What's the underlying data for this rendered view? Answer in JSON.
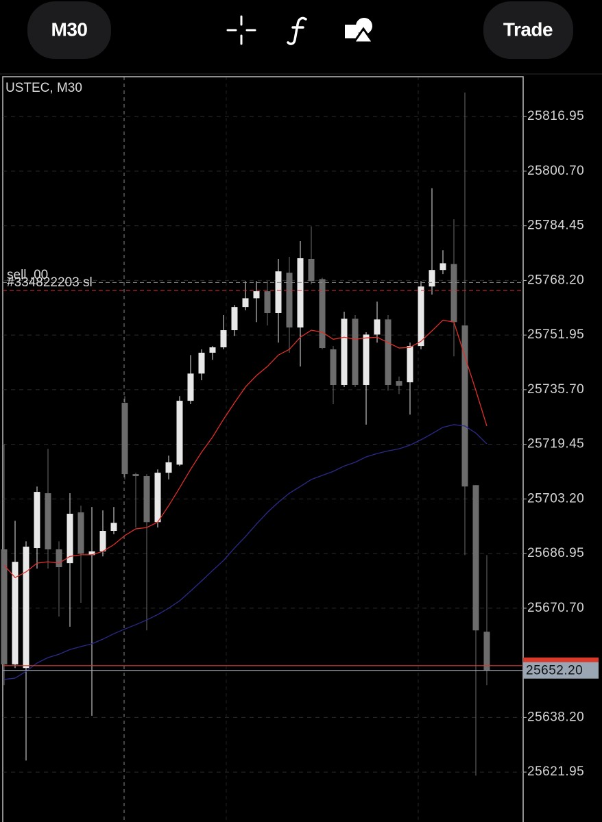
{
  "toolbar": {
    "timeframe": "M30",
    "trade": "Trade"
  },
  "chart_data": {
    "type": "candlestick",
    "title": "USTEC, M30",
    "up_color": "#e8e8e8",
    "down_color": "#6c6c6c",
    "candles": {
      "open": [
        25688.2,
        25654.0,
        25652.9,
        25688.6,
        25704.9,
        25688.2,
        25684.1,
        25699.2,
        25686.5,
        25687.6,
        25693.7,
        25731.8,
        25710.6,
        25710.0,
        25696.3,
        25711.0,
        25713.4,
        25732.4,
        25740.5,
        25746.7,
        25748.3,
        25753.4,
        25760.3,
        25762.9,
        25765.0,
        25758.5,
        25770.5,
        25754.2,
        25774.6,
        25768.6,
        25747.7,
        25737.1,
        25756.8,
        25737.1,
        25752.1,
        25756.6,
        25738.3,
        25737.9,
        25748.7,
        25766.4,
        25771.3,
        25773.1,
        25754.8,
        25707.3,
        25663.7
      ],
      "high": [
        25719.6,
        25696.7,
        25690.6,
        25706.9,
        25718.1,
        25690.6,
        25704.9,
        25701.2,
        25700.8,
        25699.8,
        25700.8,
        25733.8,
        25711.0,
        25710.6,
        25712.0,
        25716.1,
        25733.8,
        25746.0,
        25747.7,
        25748.7,
        25757.9,
        25760.9,
        25768.0,
        25768.0,
        25768.0,
        25774.6,
        25775.2,
        25779.9,
        25784.3,
        25769.0,
        25748.7,
        25758.9,
        25757.9,
        25752.8,
        25761.9,
        25757.9,
        25739.6,
        25749.7,
        25768.0,
        25795.6,
        25777.2,
        25786.4,
        25824.1,
        25707.3,
        25686.5
      ],
      "low": [
        25647.8,
        25652.9,
        25625.4,
        25682.5,
        25682.5,
        25668.2,
        25665.2,
        25672.3,
        25638.7,
        25686.1,
        25692.7,
        25709.0,
        25694.7,
        25664.1,
        25694.7,
        25709.0,
        25713.0,
        25731.4,
        25738.5,
        25744.6,
        25747.7,
        25751.7,
        25759.3,
        25755.8,
        25754.8,
        25749.7,
        25746.7,
        25742.6,
        25767.0,
        25747.7,
        25731.4,
        25736.5,
        25736.5,
        25725.3,
        25749.7,
        25735.4,
        25734.4,
        25728.3,
        25747.7,
        25764.0,
        25770.1,
        25745.6,
        25686.5,
        25620.9,
        25647.8
      ],
      "close": [
        25654.0,
        25684.5,
        25689.0,
        25705.3,
        25688.2,
        25682.9,
        25698.8,
        25686.9,
        25687.6,
        25693.7,
        25696.1,
        25710.6,
        25710.0,
        25696.3,
        25711.0,
        25714.1,
        25732.4,
        25740.5,
        25746.7,
        25748.3,
        25753.4,
        25760.3,
        25762.9,
        25765.0,
        25758.5,
        25770.9,
        25754.2,
        25774.8,
        25768.0,
        25748.1,
        25737.1,
        25756.8,
        25737.1,
        25752.1,
        25756.6,
        25737.1,
        25736.9,
        25748.7,
        25766.4,
        25771.3,
        25773.3,
        25755.8,
        25706.9,
        25664.1,
        25652.2
      ]
    },
    "lines": [
      {
        "color": "#e0302a",
        "values": [
          25683.5,
          25679.8,
          25681.5,
          25684.1,
          25684.5,
          25684.1,
          25686.1,
          25686.6,
          25686.6,
          25687.6,
          25689.6,
          25692.3,
          25694.3,
          25694.7,
          25696.3,
          25701.2,
          25706.5,
          25712.0,
          25717.1,
          25721.6,
          25726.9,
          25731.8,
          25736.5,
          25739.9,
          25742.6,
          25746.0,
          25747.7,
          25751.3,
          25753.4,
          25752.8,
          25750.7,
          25751.3,
          25750.7,
          25751.1,
          25751.3,
          25749.7,
          25748.1,
          25748.3,
          25750.1,
          25753.2,
          25756.4,
          25755.8,
          25745.6,
          25735.5,
          25724.9
        ]
      },
      {
        "color": "#2b2b8c",
        "values": [
          25649.5,
          25649.9,
          25651.9,
          25654.4,
          25656.0,
          25657.0,
          25658.4,
          25659.3,
          25660.1,
          25661.5,
          25663.1,
          25664.5,
          25665.8,
          25667.2,
          25668.8,
          25670.7,
          25672.9,
          25675.8,
          25678.8,
          25681.9,
          25684.9,
          25688.6,
          25692.0,
          25695.7,
          25699.2,
          25702.2,
          25704.9,
          25706.9,
          25709.0,
          25710.2,
          25711.4,
          25713.0,
          25714.1,
          25715.7,
          25716.7,
          25717.5,
          25718.1,
          25719.2,
          25720.8,
          25722.6,
          25724.5,
          25725.3,
          25724.9,
          25722.8,
          25719.6
        ]
      }
    ],
    "ylim": [
      25607.1,
      25828.8
    ],
    "yticks": [
      25816.95,
      {
        "value": 25800.7,
        "label": "25800.70"
      },
      25784.45,
      {
        "value": 25768.2,
        "label": "25768.20"
      },
      25751.95,
      {
        "value": 25735.7,
        "label": "25735.70"
      },
      25719.45,
      {
        "value": 25703.2,
        "label": "25703.20"
      },
      25686.95,
      {
        "value": 25670.7,
        "label": "25670.70"
      },
      {
        "value": 25638.2,
        "label": "25638.20"
      },
      25621.95
    ],
    "grid": true,
    "order": {
      "side": "sell .00",
      "label": "#334822203 sl",
      "value": 25765.2,
      "color": "#d03030"
    },
    "order_ref": {
      "value": 25767.6,
      "color": "#8a8a8a"
    },
    "ask": {
      "value": 25653.6,
      "color": "#d83a2c"
    },
    "bid": {
      "value": 25652.2,
      "label": "25652.20",
      "color": "#9aa6b4"
    }
  }
}
